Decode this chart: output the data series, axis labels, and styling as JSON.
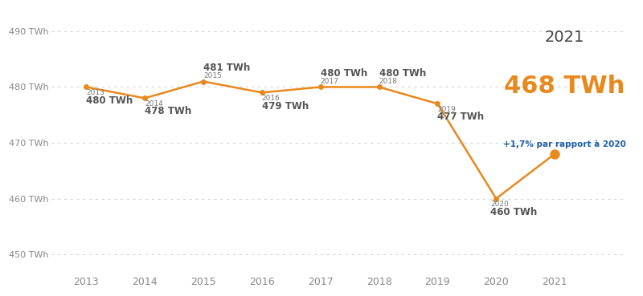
{
  "years": [
    2013,
    2014,
    2015,
    2016,
    2017,
    2018,
    2019,
    2020,
    2021
  ],
  "values": [
    480,
    478,
    481,
    479,
    480,
    480,
    477,
    460,
    468
  ],
  "labels": [
    "480 TWh",
    "478 TWh",
    "481 TWh",
    "479 TWh",
    "480 TWh",
    "480 TWh",
    "477 TWh",
    "460 TWh",
    "468 TWh"
  ],
  "line_color": "#E8891E",
  "marker_color": "#E8891E",
  "label_year_color": "#777777",
  "label_value_color": "#555555",
  "bg_color": "#FFFFFF",
  "grid_color": "#CCCCCC",
  "yticks": [
    450,
    460,
    470,
    480,
    490
  ],
  "ylim": [
    447,
    494
  ],
  "xlim": [
    2012.4,
    2022.2
  ],
  "annotation_year": "2021",
  "annotation_value": "468 TWh",
  "annotation_sub": "+1,7% par rapport à 2020",
  "annotation_year_color": "#444444",
  "annotation_value_color": "#E8891E",
  "annotation_sub_color": "#1B5EA6",
  "xtick_labels": [
    "2013",
    "2014",
    "2015",
    "2016",
    "2017",
    "2018",
    "2019",
    "2020",
    "2021"
  ],
  "ytick_label_suffix": " TWh",
  "label_offsets_dx": [
    0.0,
    0.0,
    0.0,
    0.0,
    0.0,
    0.0,
    0.0,
    -0.5,
    0.0
  ],
  "label_offsets_above": [
    true,
    false,
    true,
    false,
    true,
    true,
    false,
    false,
    false
  ],
  "label_offsets_right": [
    true,
    true,
    true,
    true,
    true,
    true,
    true,
    false,
    false
  ]
}
